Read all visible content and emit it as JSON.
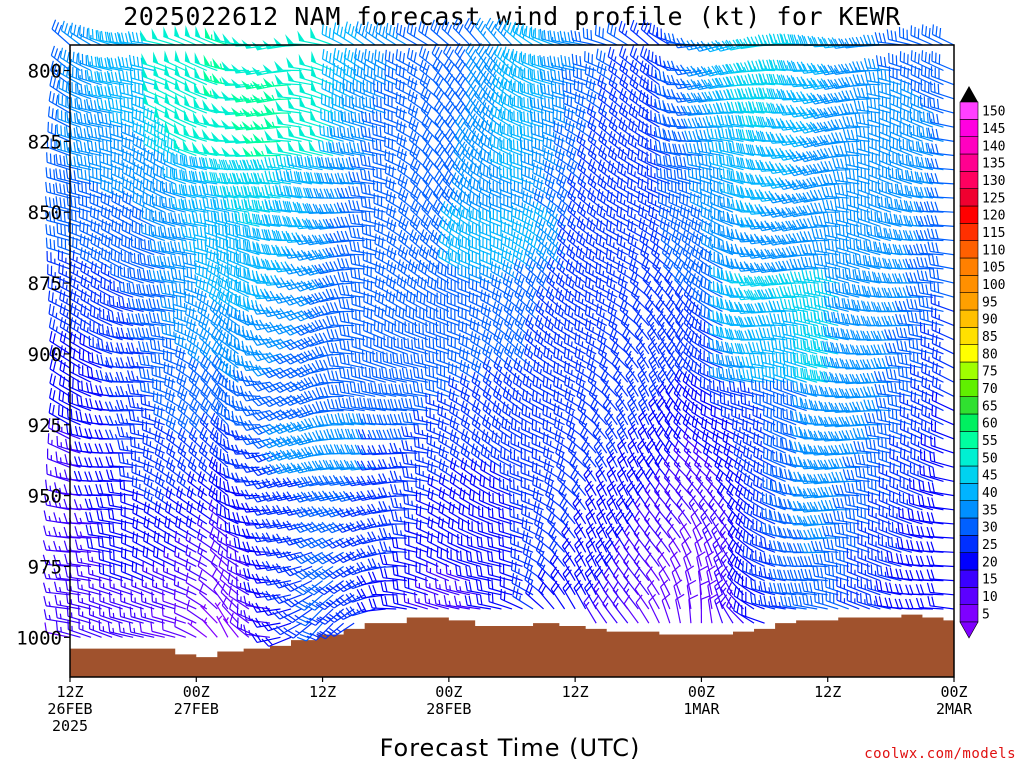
{
  "title": "2025022612 NAM forecast wind profile (kt) for KEWR",
  "credit": "coolwx.com/models",
  "chart_data": {
    "type": "wind-barb-time-height",
    "title": "2025022612 NAM forecast wind profile (kt) for KEWR",
    "xlabel": "Forecast Time (UTC)",
    "ylabel": "",
    "y_axis": {
      "ticks": [
        800,
        825,
        850,
        875,
        900,
        925,
        950,
        975,
        1000
      ],
      "range": [
        791,
        1014
      ],
      "inverted": true
    },
    "x_axis": {
      "hours_range": [
        0,
        84
      ],
      "ticks": [
        {
          "hour": 0,
          "line1": "12Z",
          "line2": "26FEB",
          "line3": "2025"
        },
        {
          "hour": 12,
          "line1": "00Z",
          "line2": "27FEB",
          "line3": ""
        },
        {
          "hour": 24,
          "line1": "12Z",
          "line2": "",
          "line3": ""
        },
        {
          "hour": 36,
          "line1": "00Z",
          "line2": "28FEB",
          "line3": ""
        },
        {
          "hour": 48,
          "line1": "12Z",
          "line2": "",
          "line3": ""
        },
        {
          "hour": 60,
          "line1": "00Z",
          "line2": "1MAR",
          "line3": ""
        },
        {
          "hour": 72,
          "line1": "12Z",
          "line2": "",
          "line3": ""
        },
        {
          "hour": 84,
          "line1": "00Z",
          "line2": "2MAR",
          "line3": ""
        }
      ]
    },
    "colorbar": {
      "levels": [
        5,
        10,
        15,
        20,
        25,
        30,
        35,
        40,
        45,
        50,
        55,
        60,
        65,
        70,
        75,
        80,
        85,
        90,
        95,
        100,
        105,
        110,
        115,
        120,
        125,
        130,
        135,
        140,
        145,
        150
      ],
      "colors": [
        "#7f00ff",
        "#5c00ff",
        "#3a00ff",
        "#0000ff",
        "#0030ff",
        "#0060ff",
        "#0090ff",
        "#00b4ff",
        "#00d2f0",
        "#00f0d2",
        "#00ffa0",
        "#00f060",
        "#30e030",
        "#60f000",
        "#a0ff00",
        "#ffff00",
        "#ffe000",
        "#ffc000",
        "#ffa000",
        "#ff9000",
        "#ff8000",
        "#ff6000",
        "#ff3000",
        "#ff0000",
        "#f00030",
        "#ff0060",
        "#ff0090",
        "#ff00c0",
        "#ff00e0",
        "#ff40ff"
      ]
    },
    "terrain": {
      "color": "#a0522d",
      "surface_pressure": [
        {
          "hour": 0,
          "p": 1004
        },
        {
          "hour": 9,
          "p": 1004
        },
        {
          "hour": 11,
          "p": 1006
        },
        {
          "hour": 13,
          "p": 1007
        },
        {
          "hour": 15,
          "p": 1005
        },
        {
          "hour": 18,
          "p": 1004
        },
        {
          "hour": 20,
          "p": 1003
        },
        {
          "hour": 22,
          "p": 1001
        },
        {
          "hour": 25,
          "p": 999
        },
        {
          "hour": 27,
          "p": 997
        },
        {
          "hour": 29,
          "p": 995
        },
        {
          "hour": 31,
          "p": 995
        },
        {
          "hour": 33,
          "p": 993
        },
        {
          "hour": 35,
          "p": 993
        },
        {
          "hour": 37,
          "p": 994
        },
        {
          "hour": 40,
          "p": 996
        },
        {
          "hour": 43,
          "p": 996
        },
        {
          "hour": 45,
          "p": 995
        },
        {
          "hour": 48,
          "p": 996
        },
        {
          "hour": 50,
          "p": 997
        },
        {
          "hour": 52,
          "p": 998
        },
        {
          "hour": 55,
          "p": 998
        },
        {
          "hour": 57,
          "p": 999
        },
        {
          "hour": 60,
          "p": 999
        },
        {
          "hour": 62,
          "p": 999
        },
        {
          "hour": 64,
          "p": 998
        },
        {
          "hour": 66,
          "p": 997
        },
        {
          "hour": 68,
          "p": 995
        },
        {
          "hour": 70,
          "p": 994
        },
        {
          "hour": 72,
          "p": 994
        },
        {
          "hour": 74,
          "p": 993
        },
        {
          "hour": 76,
          "p": 993
        },
        {
          "hour": 78,
          "p": 993
        },
        {
          "hour": 80,
          "p": 992
        },
        {
          "hour": 82,
          "p": 993
        },
        {
          "hour": 84,
          "p": 994
        }
      ]
    },
    "wind_barbs": {
      "hour_step": 1,
      "levels": [
        791,
        800,
        805,
        810,
        815,
        820,
        825,
        830,
        835,
        840,
        845,
        850,
        855,
        860,
        865,
        870,
        875,
        880,
        885,
        890,
        895,
        900,
        905,
        910,
        915,
        920,
        925,
        930,
        935,
        940,
        945,
        950,
        955,
        960,
        965,
        970,
        975,
        980,
        985,
        990,
        995,
        1000
      ],
      "description": "Direction (deg from) and speed (kt) fields sampled each forecast hour at each level; generated from keyframes below",
      "keyframes": [
        {
          "hour": 0,
          "dir_upper": 300,
          "spd_upper": 30,
          "dir_lower": 285,
          "spd_lower": 12
        },
        {
          "hour": 6,
          "dir_upper": 290,
          "spd_upper": 38,
          "dir_lower": 275,
          "spd_lower": 12
        },
        {
          "hour": 11,
          "dir_upper": 285,
          "spd_upper": 45,
          "dir_lower": 300,
          "spd_lower": 10
        },
        {
          "hour": 15,
          "dir_upper": 280,
          "spd_upper": 48,
          "dir_lower": 330,
          "spd_lower": 8
        },
        {
          "hour": 20,
          "dir_upper": 270,
          "spd_upper": 44,
          "dir_lower": 250,
          "spd_lower": 20
        },
        {
          "hour": 24,
          "dir_upper": 280,
          "spd_upper": 40,
          "dir_lower": 230,
          "spd_lower": 25
        },
        {
          "hour": 30,
          "dir_upper": 300,
          "spd_upper": 35,
          "dir_lower": 260,
          "spd_lower": 18
        },
        {
          "hour": 36,
          "dir_upper": 320,
          "spd_upper": 32,
          "dir_lower": 280,
          "spd_lower": 18
        },
        {
          "hour": 44,
          "dir_upper": 300,
          "spd_upper": 38,
          "dir_lower": 300,
          "spd_lower": 20
        },
        {
          "hour": 50,
          "dir_upper": 290,
          "spd_upper": 30,
          "dir_lower": 330,
          "spd_lower": 15
        },
        {
          "hour": 56,
          "dir_upper": 300,
          "spd_upper": 28,
          "dir_lower": 340,
          "spd_lower": 12
        },
        {
          "hour": 60,
          "dir_upper": 270,
          "spd_upper": 32,
          "dir_lower": 350,
          "spd_lower": 10
        },
        {
          "hour": 66,
          "dir_upper": 260,
          "spd_upper": 42,
          "dir_lower": 300,
          "spd_lower": 18
        },
        {
          "hour": 72,
          "dir_upper": 265,
          "spd_upper": 40,
          "dir_lower": 280,
          "spd_lower": 28
        },
        {
          "hour": 78,
          "dir_upper": 280,
          "spd_upper": 36,
          "dir_lower": 280,
          "spd_lower": 25
        },
        {
          "hour": 84,
          "dir_upper": 285,
          "spd_upper": 30,
          "dir_lower": 285,
          "spd_lower": 20
        }
      ]
    }
  }
}
